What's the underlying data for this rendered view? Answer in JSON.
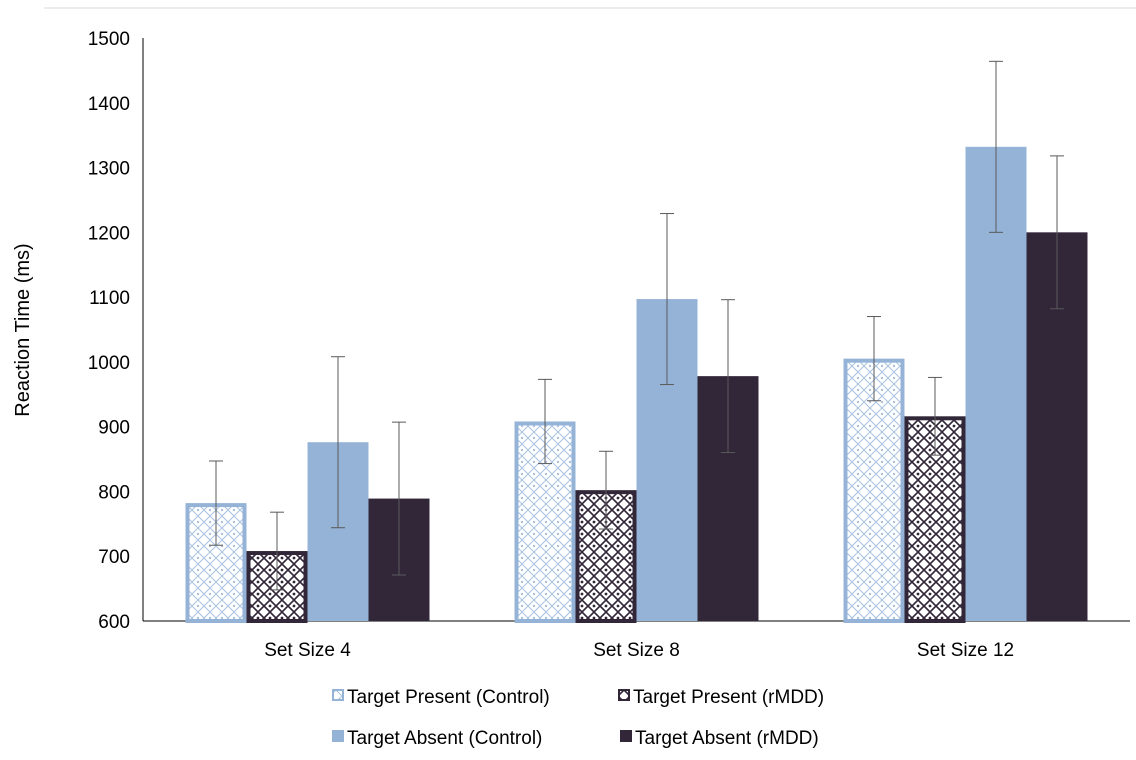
{
  "chart_data": {
    "type": "bar",
    "title": "",
    "xlabel": "",
    "ylabel": "Reaction Time (ms)",
    "ylim": [
      600,
      1500
    ],
    "yticks": [
      600,
      700,
      800,
      900,
      1000,
      1100,
      1200,
      1300,
      1400,
      1500
    ],
    "categories": [
      "Set Size 4",
      "Set Size 8",
      "Set Size 12"
    ],
    "grid": false,
    "legend_position": "bottom",
    "series": [
      {
        "name": "Target Present (Control)",
        "values": [
          782,
          908,
          1005
        ],
        "error": [
          65,
          65,
          65
        ],
        "color": "#95b3d7",
        "pattern": "light-diamond"
      },
      {
        "name": "Target Present (rMDD)",
        "values": [
          708,
          802,
          916
        ],
        "error": [
          60,
          60,
          60
        ],
        "color": "#312739",
        "pattern": "dark-diamond"
      },
      {
        "name": "Target Absent (Control)",
        "values": [
          876,
          1097,
          1332
        ],
        "error": [
          132,
          132,
          132
        ],
        "color": "#95b3d7",
        "pattern": "solid"
      },
      {
        "name": "Target Absent (rMDD)",
        "values": [
          789,
          978,
          1200
        ],
        "error": [
          118,
          118,
          118
        ],
        "color": "#312739",
        "pattern": "solid"
      }
    ]
  }
}
